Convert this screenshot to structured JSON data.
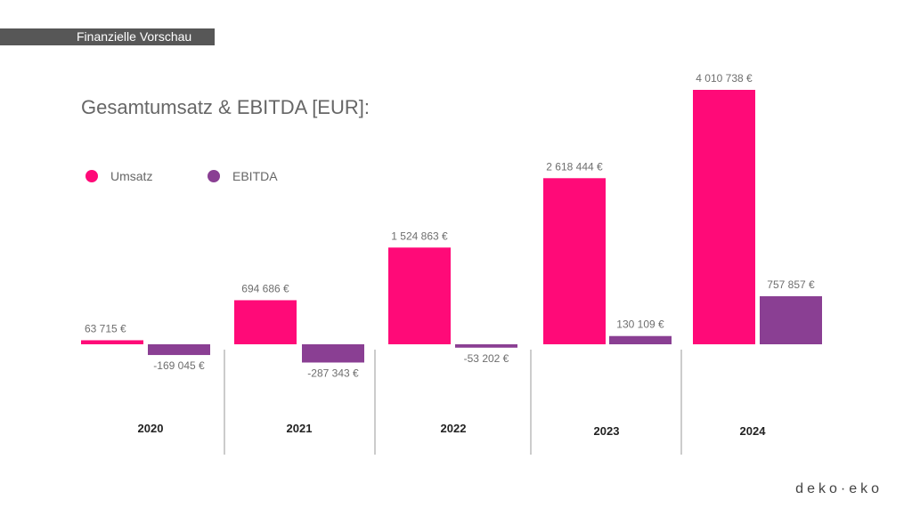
{
  "banner": {
    "text": "Finanzielle Vorschau"
  },
  "logo": {
    "text": "deko·eko"
  },
  "colors": {
    "umsatz": "#ff0a78",
    "ebitda": "#8a3f93",
    "banner": "#575757",
    "text": "#666666"
  },
  "chart_data": {
    "type": "bar",
    "title": "Gesamtumsatz & EBITDA [EUR]:",
    "categories": [
      "2020",
      "2021",
      "2022",
      "2023",
      "2024"
    ],
    "series": [
      {
        "name": "Umsatz",
        "color": "#ff0a78",
        "values": [
          63715,
          694686,
          1524863,
          2618444,
          4010738
        ],
        "labels": [
          "63 715 €",
          "694 686 €",
          "1 524 863 €",
          "2 618 444 €",
          "4 010 738 €"
        ]
      },
      {
        "name": "EBITDA",
        "color": "#8a3f93",
        "values": [
          -169045,
          -287343,
          -53202,
          130109,
          757857
        ],
        "labels": [
          "-169 045 €",
          "-287 343 €",
          "-53 202 €",
          "130 109 €",
          "757 857 €"
        ]
      }
    ],
    "legend": "top-left",
    "grid": false,
    "ylim": [
      -600000,
      4010738
    ]
  }
}
